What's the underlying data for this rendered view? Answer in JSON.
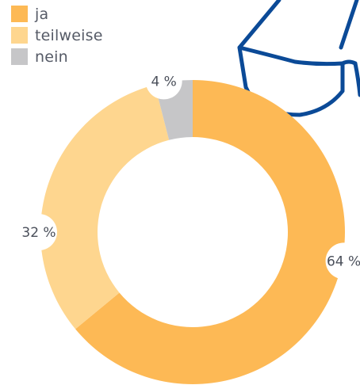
{
  "colors": {
    "ja": "#fdb955",
    "teilweise": "#fed68f",
    "nein": "#c6c6c8",
    "decoration": "#0b4a97"
  },
  "legend": {
    "items": [
      {
        "label": "ja",
        "color": "#fdb955"
      },
      {
        "label": "teilweise",
        "color": "#fed68f"
      },
      {
        "label": "nein",
        "color": "#c6c6c8"
      }
    ]
  },
  "chart_data": {
    "type": "pie",
    "variant": "donut",
    "categories": [
      "ja",
      "teilweise",
      "nein"
    ],
    "values": [
      64,
      32,
      4
    ],
    "unit": "%",
    "labels": [
      "64 %",
      "32 %",
      "4 %"
    ],
    "legend_position": "top-left",
    "start": "top",
    "direction": "clockwise"
  },
  "decoration": {
    "icon": "glasses-icon"
  }
}
